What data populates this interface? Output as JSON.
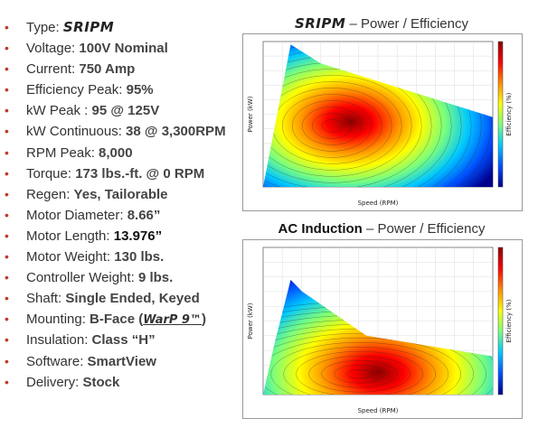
{
  "specs": [
    {
      "label": "Type: ",
      "value": "SRIPM",
      "style": "brand"
    },
    {
      "label": "Voltage: ",
      "value": "100V Nominal"
    },
    {
      "label": "Current: ",
      "value": "750 Amp"
    },
    {
      "label": "Efficiency Peak: ",
      "value": "95%"
    },
    {
      "label": "kW Peak : ",
      "value": "95 @ 125V"
    },
    {
      "label": "kW Continuous: ",
      "value": "38 @ 3,300RPM"
    },
    {
      "label": "RPM Peak: ",
      "value": "8,000"
    },
    {
      "label": "Torque: ",
      "value": "173 lbs.-ft. @ 0 RPM"
    },
    {
      "label": "Regen: ",
      "value": "Yes, Tailorable"
    },
    {
      "label": "Motor Diameter: ",
      "value": "8.66”"
    },
    {
      "label": "Motor Length: ",
      "value": "13.976”",
      "style": "emph"
    },
    {
      "label": "Motor Weight: ",
      "value": "130 lbs."
    },
    {
      "label": "Controller Weight: ",
      "value": "9 lbs."
    },
    {
      "label": "Shaft: ",
      "value": "Single Ended, Keyed"
    },
    {
      "label": "Mounting: ",
      "value": "B-Face (",
      "brand": "WarP 9™",
      "suffix": ")"
    },
    {
      "label": "Insulation: ",
      "value": "Class “H”"
    },
    {
      "label": "Software: ",
      "value": "SmartView"
    },
    {
      "label": "Delivery: ",
      "value": "Stock"
    }
  ],
  "chart1": {
    "title_brand": "SRIPM",
    "title_rest": " – Power / Efficiency"
  },
  "chart2": {
    "title_strong": "AC Induction",
    "title_rest": " – Power / Efficiency"
  },
  "chart_data": [
    {
      "type": "heatmap",
      "title": "SRIPM – Power / Efficiency",
      "xlabel": "Speed (RPM)",
      "ylabel": "Power (kW)",
      "colorbar_label": "Efficiency (%)",
      "colormap": [
        "#00008b",
        "#0050ff",
        "#00c8ff",
        "#7dff7a",
        "#ffff00",
        "#ff8c00",
        "#ff0000",
        "#8b0000"
      ],
      "peak_region": "center-left"
    },
    {
      "type": "heatmap",
      "title": "AC Induction – Power / Efficiency",
      "xlabel": "Speed (RPM)",
      "ylabel": "Power (kW)",
      "colorbar_label": "Efficiency (%)",
      "colormap": [
        "#00008b",
        "#0050ff",
        "#00c8ff",
        "#7dff7a",
        "#ffff00",
        "#ff8c00",
        "#ff0000",
        "#8b0000"
      ],
      "peak_region": "center-bottom"
    }
  ]
}
